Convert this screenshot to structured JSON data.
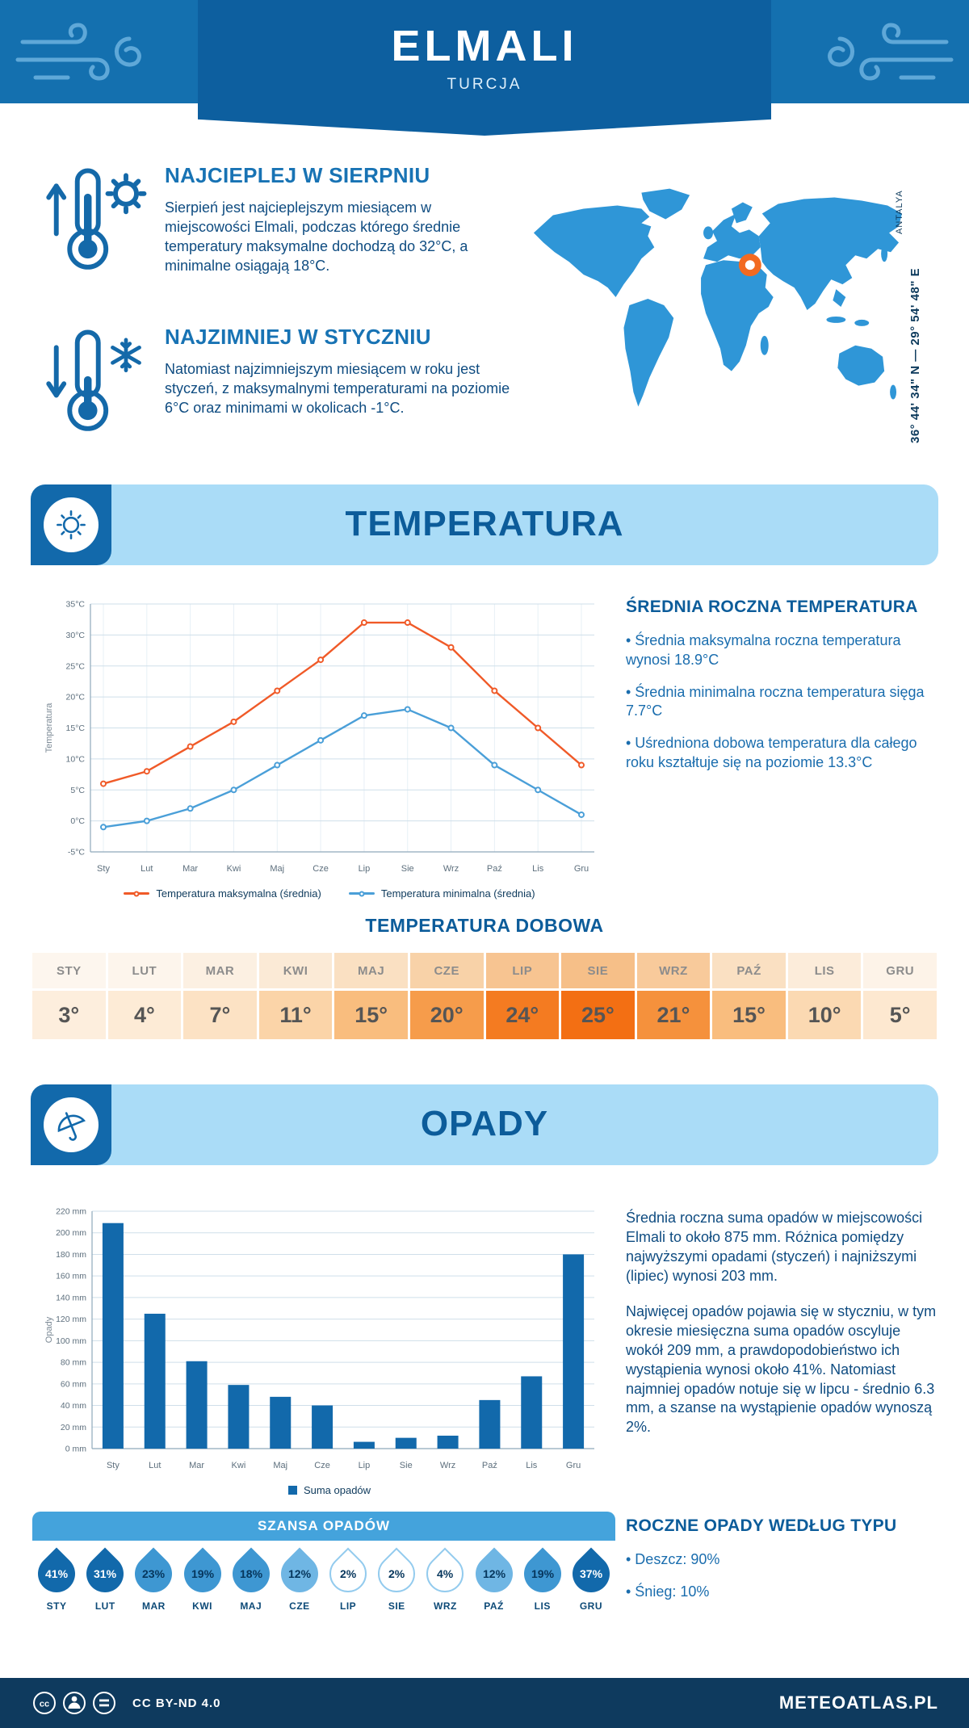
{
  "header": {
    "city": "ELMALI",
    "country": "TURCJA"
  },
  "highlights": [
    {
      "title": "NAJCIEPLEJ W SIERPNIU",
      "text": "Sierpień jest najcieplejszym miesiącem w miejscowości Elmali, podczas którego średnie temperatury maksymalne dochodzą do 32°C, a minimalne osiągają 18°C.",
      "icon": "thermometer-warm-icon"
    },
    {
      "title": "NAJZIMNIEJ W STYCZNIU",
      "text": "Natomiast najzimniejszym miesiącem w roku jest styczeń, z maksymalnymi temperaturami na poziomie 6°C oraz minimami w okolicach -1°C.",
      "icon": "thermometer-cold-icon"
    }
  ],
  "map": {
    "region": "ANTALYA",
    "coordinates": "36° 44' 34\" N — 29° 54' 48\" E",
    "land_color": "#2f96d7",
    "marker_color": "#f26a21"
  },
  "sections": {
    "temperature": {
      "title": "TEMPERATURA"
    },
    "precipitation": {
      "title": "OPADY"
    }
  },
  "temperature_summary": {
    "title": "ŚREDNIA ROCZNA TEMPERATURA",
    "bullets": [
      "• Średnia maksymalna roczna temperatura wynosi 18.9°C",
      "• Średnia minimalna roczna temperatura sięga 7.7°C",
      "• Uśredniona dobowa temperatura dla całego roku kształtuje się na poziomie 13.3°C"
    ]
  },
  "daily_temperature": {
    "title": "TEMPERATURA DOBOWA",
    "months": [
      "STY",
      "LUT",
      "MAR",
      "KWI",
      "MAJ",
      "CZE",
      "LIP",
      "SIE",
      "WRZ",
      "PAŹ",
      "LIS",
      "GRU"
    ],
    "values": [
      "3°",
      "4°",
      "7°",
      "11°",
      "15°",
      "20°",
      "24°",
      "25°",
      "21°",
      "15°",
      "10°",
      "5°"
    ],
    "header_colors": [
      "#fdf6ee",
      "#fdf5ec",
      "#fcf0e2",
      "#fbead6",
      "#fae0c2",
      "#f8d2a8",
      "#f7c491",
      "#f6bf88",
      "#f8ca9b",
      "#fae0c2",
      "#fcecda",
      "#fdf3e8"
    ],
    "cell_colors": [
      "#fdeedd",
      "#fdebd6",
      "#fce2c4",
      "#fbd4a8",
      "#f9bd7e",
      "#f69c4b",
      "#f47b21",
      "#f36f13",
      "#f5913c",
      "#f9bd7e",
      "#fbd9b2",
      "#fde8d0"
    ]
  },
  "precipitation_summary": {
    "paragraphs": [
      "Średnia roczna suma opadów w miejscowości Elmali to około 875 mm. Różnica pomiędzy najwyższymi opadami (styczeń) i najniższymi (lipiec) wynosi 203 mm.",
      "Najwięcej opadów pojawia się w styczniu, w tym okresie miesięczna suma opadów oscyluje wokół 209 mm, a prawdopodobieństwo ich wystąpienia wynosi około 41%. Natomiast najmniej opadów notuje się w lipcu - średnio 6.3 mm, a szanse na wystąpienie opadów wynoszą 2%."
    ]
  },
  "precipitation_chance": {
    "title": "SZANSA OPADÓW",
    "months": [
      "STY",
      "LUT",
      "MAR",
      "KWI",
      "MAJ",
      "CZE",
      "LIP",
      "SIE",
      "WRZ",
      "PAŹ",
      "LIS",
      "GRU"
    ],
    "values": [
      "41%",
      "31%",
      "23%",
      "19%",
      "18%",
      "12%",
      "2%",
      "2%",
      "4%",
      "12%",
      "19%",
      "37%"
    ],
    "drop_fills": [
      "#1269ab",
      "#1269ab",
      "#3e97d2",
      "#3e97d2",
      "#3e97d2",
      "#6fb6e4",
      "#ffffff",
      "#ffffff",
      "#ffffff",
      "#6fb6e4",
      "#3e97d2",
      "#1269ab"
    ],
    "drop_text_colors": [
      "#ffffff",
      "#ffffff",
      "#06365c",
      "#06365c",
      "#06365c",
      "#06365c",
      "#06365c",
      "#06365c",
      "#06365c",
      "#06365c",
      "#06365c",
      "#ffffff"
    ],
    "drop_outline": "#93cbee"
  },
  "precipitation_type": {
    "title": "ROCZNE OPADY WEDŁUG TYPU",
    "bullets": [
      "• Deszcz: 90%",
      "• Śnieg: 10%"
    ]
  },
  "footer": {
    "license": "CC BY-ND 4.0",
    "brand": "METEOATLAS.PL"
  },
  "chart_data": [
    {
      "type": "line",
      "title": "Temperatura",
      "categories": [
        "Sty",
        "Lut",
        "Mar",
        "Kwi",
        "Maj",
        "Cze",
        "Lip",
        "Sie",
        "Wrz",
        "Paź",
        "Lis",
        "Gru"
      ],
      "series": [
        {
          "name": "Temperatura maksymalna (średnia)",
          "color": "#f05a28",
          "values": [
            6,
            8,
            12,
            16,
            21,
            26,
            32,
            32,
            28,
            21,
            15,
            9
          ]
        },
        {
          "name": "Temperatura minimalna (średnia)",
          "color": "#4a9fd8",
          "values": [
            -1,
            0,
            2,
            5,
            9,
            13,
            17,
            18,
            15,
            9,
            5,
            1
          ]
        }
      ],
      "xlabel": "",
      "ylabel": "Temperatura",
      "ylim": [
        -5,
        35
      ],
      "ytick_step": 5,
      "ytick_suffix": "°C",
      "grid": true,
      "legend_position": "bottom"
    },
    {
      "type": "bar",
      "title": "Opady",
      "categories": [
        "Sty",
        "Lut",
        "Mar",
        "Kwi",
        "Maj",
        "Cze",
        "Lip",
        "Sie",
        "Wrz",
        "Paź",
        "Lis",
        "Gru"
      ],
      "series": [
        {
          "name": "Suma opadów",
          "color": "#1269ab",
          "values": [
            209,
            125,
            81,
            59,
            48,
            40,
            6.3,
            10,
            12,
            45,
            67,
            180
          ]
        }
      ],
      "xlabel": "",
      "ylabel": "Opady",
      "ylim": [
        0,
        220
      ],
      "ytick_step": 20,
      "ytick_suffix": " mm",
      "grid": true,
      "legend_position": "bottom"
    }
  ]
}
